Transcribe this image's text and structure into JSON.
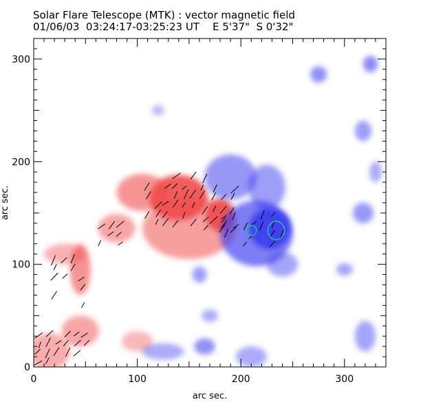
{
  "header": {
    "title": "Solar Flare Telescope (MTK) : vector magnetic field",
    "subtitle": "01/06/03  03:24:17-03:25:23 UT    E 5'37\"  S 0'32\""
  },
  "chart_data": {
    "type": "heatmap",
    "title": "Solar Flare Telescope (MTK) : vector magnetic field",
    "subtitle": "01/06/03  03:24:17-03:25:23 UT    E 5'37\"  S 0'32\"",
    "xlabel": "arc sec.",
    "ylabel": "arc sec.",
    "xlim": [
      0,
      340
    ],
    "ylim": [
      0,
      320
    ],
    "x_ticks": [
      0,
      100,
      200,
      300
    ],
    "y_ticks": [
      0,
      100,
      200,
      300
    ],
    "grid": false,
    "colors": {
      "positive_polarity": "#f04a4a",
      "negative_polarity": "#3a3aee",
      "transverse_vectors": "#000000",
      "contours": "#20c0b0"
    },
    "regions": [
      {
        "polarity": "positive",
        "x": 140,
        "y": 165,
        "rx": 28,
        "ry": 22,
        "intensity": 1.0
      },
      {
        "polarity": "positive",
        "x": 180,
        "y": 148,
        "rx": 14,
        "ry": 16,
        "intensity": 1.0
      },
      {
        "polarity": "positive",
        "x": 150,
        "y": 135,
        "rx": 45,
        "ry": 30,
        "intensity": 0.45
      },
      {
        "polarity": "positive",
        "x": 105,
        "y": 170,
        "rx": 25,
        "ry": 18,
        "intensity": 0.55
      },
      {
        "polarity": "positive",
        "x": 80,
        "y": 135,
        "rx": 18,
        "ry": 14,
        "intensity": 0.4
      },
      {
        "polarity": "positive",
        "x": 45,
        "y": 95,
        "rx": 10,
        "ry": 25,
        "intensity": 0.55
      },
      {
        "polarity": "positive",
        "x": 30,
        "y": 110,
        "rx": 20,
        "ry": 10,
        "intensity": 0.3
      },
      {
        "polarity": "positive",
        "x": 45,
        "y": 35,
        "rx": 18,
        "ry": 15,
        "intensity": 0.4
      },
      {
        "polarity": "positive",
        "x": 15,
        "y": 15,
        "rx": 20,
        "ry": 18,
        "intensity": 0.35
      },
      {
        "polarity": "positive",
        "x": 100,
        "y": 25,
        "rx": 15,
        "ry": 10,
        "intensity": 0.25
      },
      {
        "polarity": "negative",
        "x": 228,
        "y": 135,
        "rx": 20,
        "ry": 20,
        "intensity": 1.0
      },
      {
        "polarity": "negative",
        "x": 215,
        "y": 130,
        "rx": 35,
        "ry": 32,
        "intensity": 0.65
      },
      {
        "polarity": "negative",
        "x": 190,
        "y": 185,
        "rx": 25,
        "ry": 22,
        "intensity": 0.45
      },
      {
        "polarity": "negative",
        "x": 225,
        "y": 175,
        "rx": 18,
        "ry": 22,
        "intensity": 0.4
      },
      {
        "polarity": "negative",
        "x": 240,
        "y": 100,
        "rx": 15,
        "ry": 12,
        "intensity": 0.35
      },
      {
        "polarity": "negative",
        "x": 275,
        "y": 285,
        "rx": 8,
        "ry": 8,
        "intensity": 0.5
      },
      {
        "polarity": "negative",
        "x": 325,
        "y": 295,
        "rx": 7,
        "ry": 8,
        "intensity": 0.55
      },
      {
        "polarity": "negative",
        "x": 318,
        "y": 230,
        "rx": 8,
        "ry": 10,
        "intensity": 0.4
      },
      {
        "polarity": "negative",
        "x": 318,
        "y": 150,
        "rx": 10,
        "ry": 10,
        "intensity": 0.45
      },
      {
        "polarity": "negative",
        "x": 165,
        "y": 20,
        "rx": 10,
        "ry": 8,
        "intensity": 0.5
      },
      {
        "polarity": "negative",
        "x": 125,
        "y": 15,
        "rx": 20,
        "ry": 8,
        "intensity": 0.3
      },
      {
        "polarity": "negative",
        "x": 160,
        "y": 90,
        "rx": 7,
        "ry": 8,
        "intensity": 0.4
      },
      {
        "polarity": "negative",
        "x": 210,
        "y": 10,
        "rx": 15,
        "ry": 10,
        "intensity": 0.3
      },
      {
        "polarity": "negative",
        "x": 300,
        "y": 95,
        "rx": 8,
        "ry": 6,
        "intensity": 0.35
      },
      {
        "polarity": "negative",
        "x": 320,
        "y": 30,
        "rx": 10,
        "ry": 15,
        "intensity": 0.35
      },
      {
        "polarity": "negative",
        "x": 330,
        "y": 190,
        "rx": 6,
        "ry": 10,
        "intensity": 0.3
      },
      {
        "polarity": "negative",
        "x": 170,
        "y": 50,
        "rx": 8,
        "ry": 6,
        "intensity": 0.3
      },
      {
        "polarity": "negative",
        "x": 120,
        "y": 250,
        "rx": 6,
        "ry": 5,
        "intensity": 0.2
      }
    ],
    "vector_regions": [
      {
        "x": [
          110,
          165
        ],
        "y": [
          140,
          185
        ]
      },
      {
        "x": [
          165,
          200
        ],
        "y": [
          135,
          160
        ]
      },
      {
        "x": [
          185,
          245
        ],
        "y": [
          120,
          150
        ]
      },
      {
        "x": [
          175,
          210
        ],
        "y": [
          165,
          180
        ]
      },
      {
        "x": [
          65,
          90
        ],
        "y": [
          120,
          140
        ]
      },
      {
        "x": [
          20,
          55
        ],
        "y": [
          60,
          110
        ]
      },
      {
        "x": [
          5,
          50
        ],
        "y": [
          5,
          40
        ]
      }
    ],
    "contours": [
      {
        "x": 210,
        "y": 133,
        "rx": 5,
        "ry": 5
      },
      {
        "x": 234,
        "y": 133,
        "rx": 8,
        "ry": 9
      }
    ]
  }
}
